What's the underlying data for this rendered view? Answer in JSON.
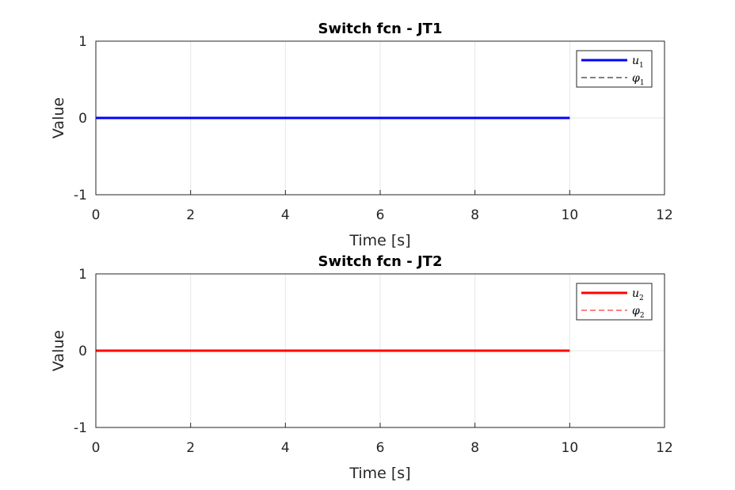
{
  "chart_data": [
    {
      "type": "line",
      "title": "Switch fcn - JT1",
      "xlabel": "Time [s]",
      "ylabel": "Value",
      "xlim": [
        0,
        12
      ],
      "ylim": [
        -1,
        1
      ],
      "xticks": [
        "0",
        "2",
        "4",
        "6",
        "8",
        "10",
        "12"
      ],
      "yticks": [
        "1",
        "0",
        "-1"
      ],
      "grid": true,
      "legend_position": "top-right",
      "series": [
        {
          "name": "u",
          "subscript": "1",
          "color": "#0000ff",
          "style": "solid",
          "x": [
            0,
            10
          ],
          "y": [
            0,
            0
          ]
        },
        {
          "name": "φ",
          "subscript": "1",
          "color": "#000000",
          "style": "dashed",
          "x": [],
          "y": []
        }
      ]
    },
    {
      "type": "line",
      "title": "Switch fcn - JT2",
      "xlabel": "Time [s]",
      "ylabel": "Value",
      "xlim": [
        0,
        12
      ],
      "ylim": [
        -1,
        1
      ],
      "xticks": [
        "0",
        "2",
        "4",
        "6",
        "8",
        "10",
        "12"
      ],
      "yticks": [
        "1",
        "0",
        "-1"
      ],
      "grid": true,
      "legend_position": "top-right",
      "series": [
        {
          "name": "u",
          "subscript": "2",
          "color": "#ff0000",
          "style": "solid",
          "x": [
            0,
            10
          ],
          "y": [
            0,
            0
          ]
        },
        {
          "name": "φ",
          "subscript": "2",
          "color": "#ff0000",
          "style": "dashed",
          "x": [],
          "y": []
        }
      ]
    }
  ]
}
